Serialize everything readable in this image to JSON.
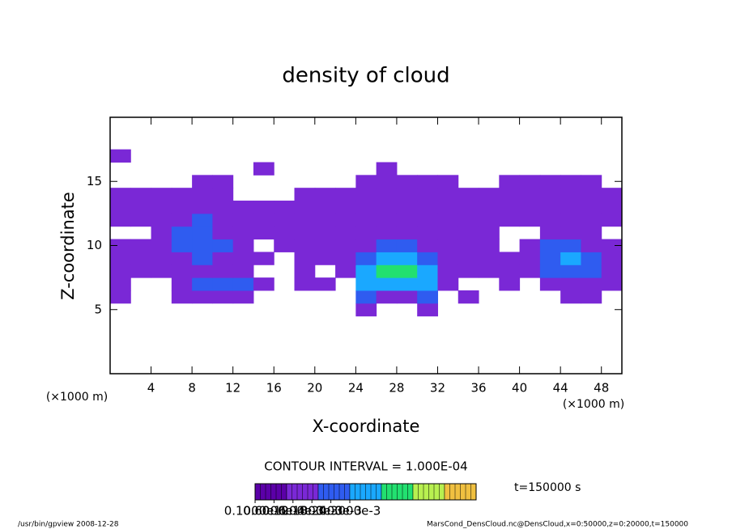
{
  "chart_data": {
    "type": "heatmap",
    "title": "density of cloud",
    "xlabel": "X-coordinate",
    "ylabel": "Z-coordinate",
    "x_unit": "(×1000 m)",
    "x_unit_right": "(×1000 m)",
    "contour_interval": "CONTOUR INTERVAL = 1.000E-04",
    "time_label": "t=150000 s",
    "footer_left": "/usr/bin/gpview   2008-12-28",
    "footer_right": "MarsCond_DensCloud.nc@DensCloud,x=0:50000,z=0:20000,t=150000",
    "xlim": [
      0,
      50
    ],
    "ylim": [
      0,
      20
    ],
    "xticks": [
      4,
      8,
      12,
      16,
      20,
      24,
      28,
      32,
      36,
      40,
      44,
      48
    ],
    "yticks": [
      5,
      10,
      15
    ],
    "x": [
      1,
      3,
      5,
      7,
      9,
      11,
      13,
      15,
      17,
      19,
      21,
      23,
      25,
      27,
      29,
      31,
      33,
      35,
      37,
      39,
      41,
      43,
      45,
      47,
      49
    ],
    "z": [
      5,
      6,
      7,
      8,
      9,
      10,
      11,
      12,
      13,
      14,
      15,
      16,
      17
    ],
    "values": [
      [
        null,
        null,
        null,
        null,
        null,
        null,
        null,
        null,
        null,
        null,
        null,
        null,
        0.0001,
        null,
        null,
        0.0001,
        null,
        null,
        null,
        null,
        null,
        null,
        null,
        null,
        null
      ],
      [
        0.0001,
        null,
        null,
        0.0001,
        0.00015,
        0.00015,
        0.0001,
        null,
        null,
        null,
        null,
        null,
        0.0002,
        0.00015,
        0.00015,
        0.0002,
        null,
        0.0001,
        null,
        null,
        null,
        null,
        0.0001,
        0.0001,
        null
      ],
      [
        0.0001,
        null,
        null,
        0.00015,
        0.00025,
        0.00025,
        0.00025,
        0.00015,
        null,
        0.0001,
        0.0001,
        null,
        0.0003,
        0.0003,
        0.0003,
        0.0003,
        0.0001,
        null,
        null,
        0.0001,
        null,
        0.00015,
        0.0001,
        0.00015,
        0.0001
      ],
      [
        0.0001,
        0.0001,
        0.0001,
        0.0001,
        0.00015,
        0.0001,
        0.0001,
        null,
        null,
        0.0001,
        null,
        0.0001,
        0.0003,
        0.00045,
        0.00045,
        0.0003,
        0.0001,
        0.0001,
        0.0001,
        0.0001,
        0.0001,
        0.0002,
        0.00025,
        0.0002,
        0.0001
      ],
      [
        0.0001,
        0.0001,
        0.0001,
        0.00015,
        0.0002,
        0.00015,
        0.0001,
        0.0001,
        null,
        0.0001,
        0.0001,
        0.0001,
        0.00025,
        0.0003,
        0.0003,
        0.00025,
        0.0001,
        0.0001,
        0.0001,
        0.0001,
        0.0001,
        0.00025,
        0.0003,
        0.0002,
        0.0001
      ],
      [
        0.0001,
        0.0001,
        0.0001,
        0.0002,
        0.00025,
        0.0002,
        0.0001,
        null,
        0.0001,
        0.0001,
        0.0001,
        0.0001,
        0.00015,
        0.0002,
        0.0002,
        0.00015,
        0.0001,
        0.0001,
        0.0001,
        null,
        0.0001,
        0.0002,
        0.00025,
        0.00015,
        0.0001
      ],
      [
        null,
        null,
        0.0001,
        0.0002,
        0.0002,
        0.00015,
        0.0001,
        0.0001,
        0.0001,
        0.0001,
        0.0001,
        0.0001,
        0.00015,
        0.00015,
        0.00015,
        0.0001,
        0.0001,
        0.0001,
        0.0001,
        null,
        null,
        0.00015,
        0.0001,
        0.0001,
        null
      ],
      [
        0.0001,
        0.0001,
        0.0001,
        0.00015,
        0.0002,
        0.00015,
        0.0001,
        0.0001,
        0.0001,
        0.00015,
        0.00015,
        0.0001,
        0.0001,
        0.00015,
        0.0001,
        0.0001,
        0.0001,
        0.0001,
        0.0001,
        0.0001,
        0.0001,
        0.0001,
        0.0001,
        0.0001,
        0.0001
      ],
      [
        0.0001,
        0.0001,
        0.0001,
        0.0001,
        0.00015,
        0.0001,
        0.0001,
        0.0001,
        0.0001,
        0.0001,
        0.00015,
        0.00015,
        0.0001,
        0.0001,
        0.00015,
        0.00015,
        0.0001,
        0.0001,
        0.0001,
        0.0001,
        0.0001,
        0.0001,
        0.0001,
        0.0001,
        0.0001
      ],
      [
        0.0001,
        0.0001,
        0.0001,
        0.0001,
        0.0001,
        0.0001,
        null,
        null,
        null,
        0.0001,
        0.0001,
        0.0001,
        0.0001,
        0.0001,
        0.0001,
        0.0001,
        0.0001,
        0.0001,
        0.0001,
        0.0001,
        0.0001,
        0.0001,
        0.0001,
        0.0001,
        0.0001
      ],
      [
        null,
        null,
        null,
        null,
        0.0001,
        0.0001,
        null,
        null,
        null,
        null,
        null,
        null,
        0.0001,
        0.0001,
        0.0001,
        0.0001,
        0.0001,
        null,
        null,
        0.0001,
        0.0001,
        0.0001,
        0.0001,
        0.0001,
        null
      ],
      [
        null,
        null,
        null,
        null,
        null,
        null,
        null,
        0.0001,
        null,
        null,
        null,
        null,
        null,
        0.0001,
        null,
        null,
        null,
        null,
        null,
        null,
        null,
        null,
        null,
        null,
        null
      ],
      [
        0.0001,
        null,
        null,
        null,
        null,
        null,
        null,
        null,
        null,
        null,
        null,
        null,
        null,
        null,
        null,
        null,
        null,
        null,
        null,
        null,
        null,
        null,
        null,
        null,
        null
      ]
    ],
    "levels": [
      0,
      0.0001,
      0.0002,
      0.0003,
      0.0004,
      0.0005,
      0.0006,
      0.0007
    ],
    "colors": [
      "#5b00a8",
      "#7a28d6",
      "#2f5cf0",
      "#1aa8ff",
      "#22e070",
      "#b8f050",
      "#f0c040",
      "#e84a30"
    ],
    "colorbar_ticks": [
      {
        "value": 1e-07,
        "label": "0.1000e-6"
      },
      {
        "value": 6e-05,
        "label": "0.6000e-4"
      },
      {
        "value": 0.00012,
        "label": "0.1200e-3"
      },
      {
        "value": 0.00018,
        "label": "0.1800e-3"
      },
      {
        "value": 0.00024,
        "label": "0.2400e-3"
      },
      {
        "value": 0.0003,
        "label": "0.3000e-3"
      }
    ]
  }
}
